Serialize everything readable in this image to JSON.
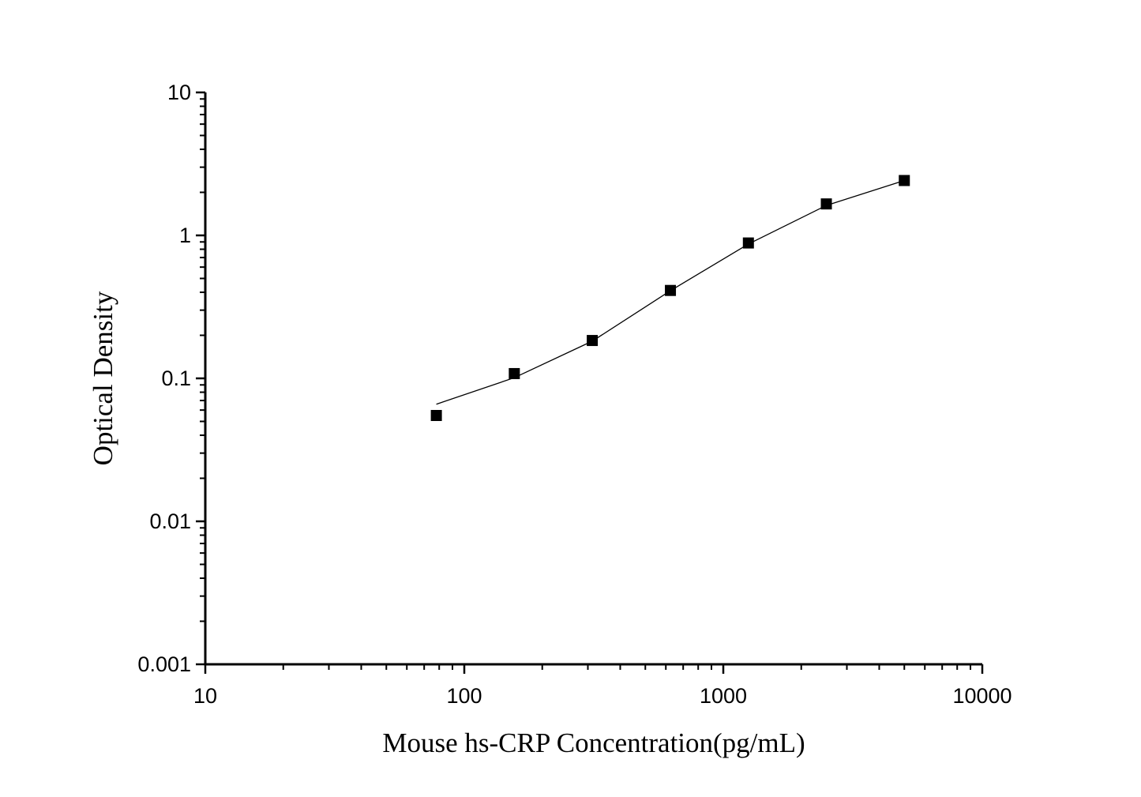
{
  "chart_data": {
    "type": "scatter",
    "xlabel": "Mouse hs-CRP Concentration(pg/mL)",
    "ylabel": "Optical Density",
    "xscale": "log",
    "yscale": "log",
    "xlim": [
      10,
      10000
    ],
    "ylim": [
      0.001,
      10
    ],
    "xticks": [
      "10",
      "100",
      "1000",
      "10000"
    ],
    "yticks": [
      "0.001",
      "0.01",
      "0.1",
      "1",
      "10"
    ],
    "grid": false,
    "series": [
      {
        "points": [
          {
            "x": 78,
            "y": 0.055
          },
          {
            "x": 156,
            "y": 0.108
          },
          {
            "x": 312,
            "y": 0.184
          },
          {
            "x": 625,
            "y": 0.412
          },
          {
            "x": 1250,
            "y": 0.885
          },
          {
            "x": 2500,
            "y": 1.66
          },
          {
            "x": 5000,
            "y": 2.42
          }
        ],
        "marker": "square",
        "color": "#000000"
      }
    ],
    "fit_curve": {
      "x": [
        78,
        156,
        312,
        625,
        1250,
        2500,
        5000
      ],
      "y": [
        0.066,
        0.101,
        0.182,
        0.41,
        0.87,
        1.62,
        2.42
      ]
    }
  }
}
